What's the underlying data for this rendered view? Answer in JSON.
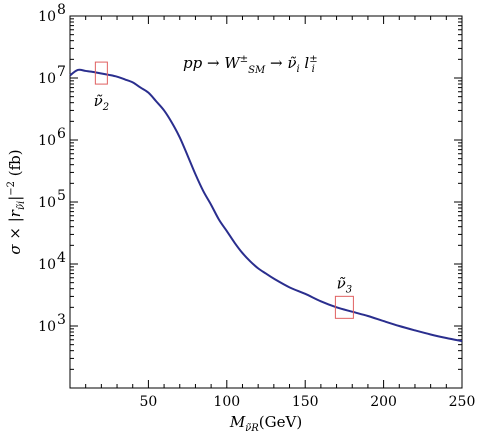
{
  "chart_data": {
    "type": "line",
    "title": "",
    "annotation": "pp → W±SM → ν̃i l±i",
    "xlabel": "M ν̃R (GeV)",
    "ylabel": "σ × |r ν̃i|−2 (fb)",
    "xlim": [
      0,
      250
    ],
    "ylim": [
      100,
      100000000
    ],
    "y_scale": "log",
    "grid": false,
    "x_ticks": [
      {
        "value": 50,
        "label": "50"
      },
      {
        "value": 100,
        "label": "100"
      },
      {
        "value": 150,
        "label": "150"
      },
      {
        "value": 200,
        "label": "200"
      },
      {
        "value": 250,
        "label": "250"
      }
    ],
    "y_ticks": [
      {
        "value": 1000,
        "label": "10",
        "exp": "3"
      },
      {
        "value": 10000,
        "label": "10",
        "exp": "4"
      },
      {
        "value": 100000,
        "label": "10",
        "exp": "5"
      },
      {
        "value": 1000000,
        "label": "10",
        "exp": "6"
      },
      {
        "value": 10000000,
        "label": "10",
        "exp": "7"
      },
      {
        "value": 100000000,
        "label": "10",
        "exp": "8"
      }
    ],
    "series": [
      {
        "color": "#2a2e8e",
        "x": [
          0,
          5,
          10,
          15,
          20,
          25,
          30,
          35,
          40,
          45,
          50,
          55,
          60,
          65,
          70,
          75,
          80,
          85,
          90,
          95,
          100,
          105,
          110,
          115,
          120,
          125,
          130,
          140,
          150,
          160,
          170,
          180,
          190,
          200,
          210,
          220,
          230,
          240,
          250
        ],
        "y": [
          11000000,
          13500000,
          13000000,
          12500000,
          11800000,
          11200000,
          10500000,
          9500000,
          8500000,
          7000000,
          5800000,
          4200000,
          3000000,
          1900000,
          1100000,
          560000,
          280000,
          150000,
          90000,
          52000,
          34000,
          22000,
          15000,
          11000,
          8500,
          7000,
          5800,
          4200,
          3300,
          2500,
          2000,
          1700,
          1450,
          1200,
          1000,
          850,
          730,
          640,
          570
        ]
      }
    ],
    "markers": [
      {
        "x": 20,
        "y": 12000000,
        "label": "ν̃2",
        "label_position": "below"
      },
      {
        "x": 175,
        "y": 2000,
        "label": "ν̃3",
        "label_position": "above"
      }
    ],
    "marker_color": "#e06060"
  }
}
